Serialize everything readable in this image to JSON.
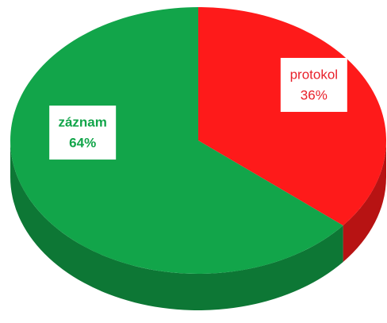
{
  "chart_data": {
    "type": "pie",
    "categories": [
      "protokol",
      "záznam"
    ],
    "values": [
      36,
      64
    ],
    "value_labels": [
      "36%",
      "64%"
    ],
    "colors": [
      "#fe1a1a",
      "#12a54a"
    ],
    "label_colors": [
      "#e8212b",
      "#12a54a"
    ]
  }
}
